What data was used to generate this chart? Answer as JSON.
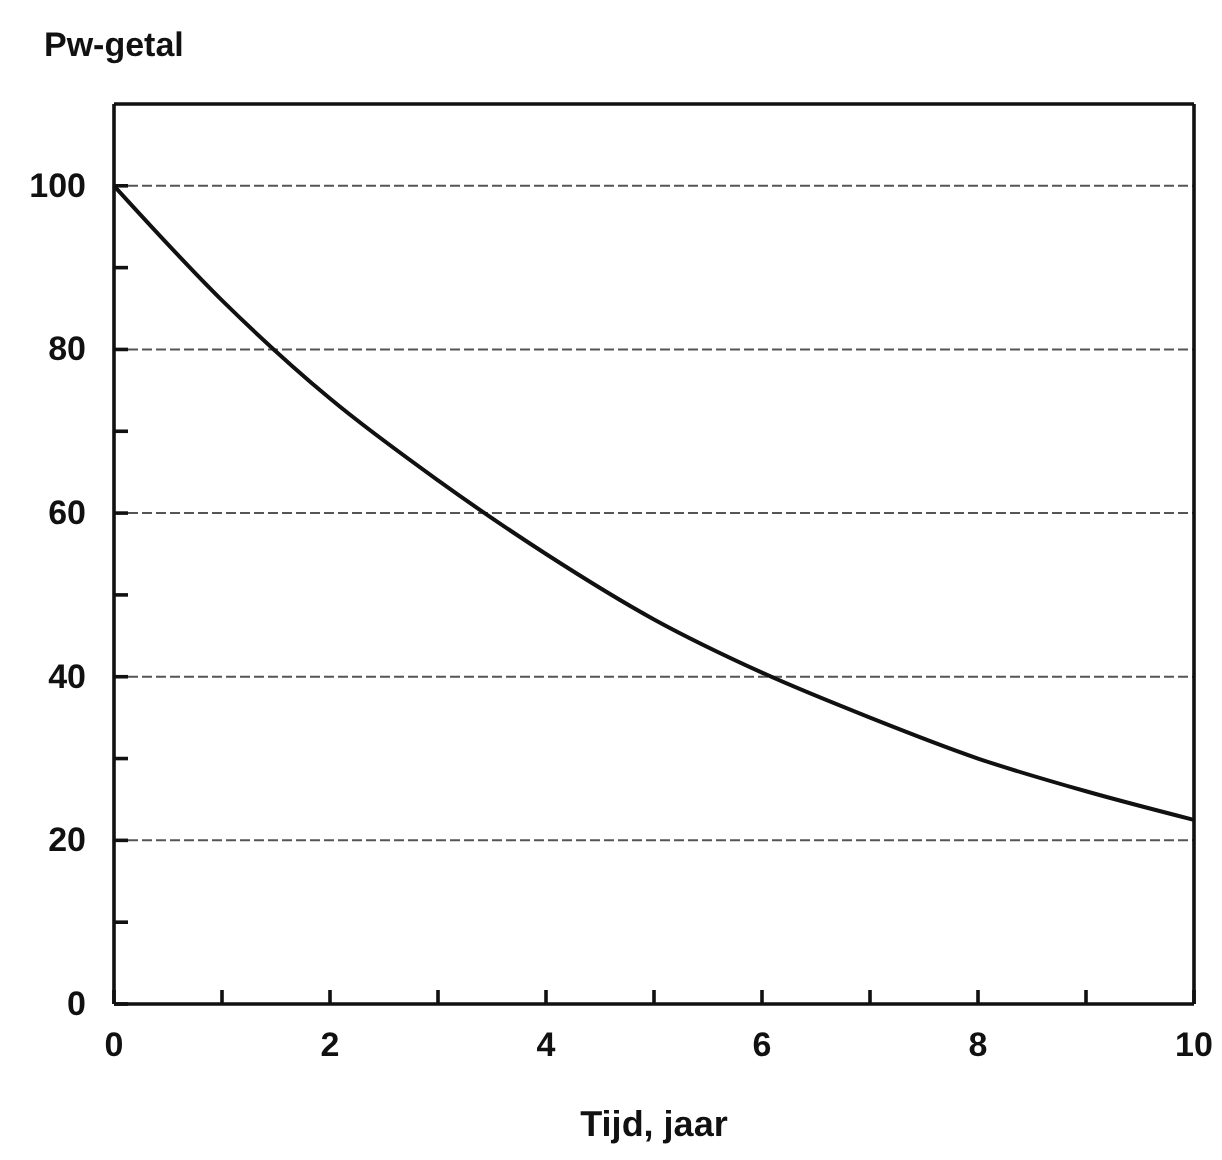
{
  "chart_data": {
    "type": "line",
    "ylabel": "Pw-getal",
    "xlabel": "Tijd, jaar",
    "x": [
      0,
      1,
      2,
      3,
      4,
      5,
      6,
      7,
      8,
      9,
      10
    ],
    "values": [
      100,
      86,
      74,
      64,
      55,
      47,
      40.5,
      35,
      30,
      26,
      22.5
    ],
    "color": "#111111",
    "line_style": "solid",
    "marker": "none",
    "xlim": [
      0,
      10
    ],
    "xticks": [
      0,
      {
        "value": 1,
        "label": null
      },
      2,
      {
        "value": 3,
        "label": null
      },
      4,
      {
        "value": 5,
        "label": null
      },
      6,
      {
        "value": 7,
        "label": null
      },
      8,
      {
        "value": 9,
        "label": null
      },
      10
    ],
    "ylim": [
      0,
      110
    ],
    "yticks": [
      0,
      {
        "value": 10,
        "label": null
      },
      20,
      {
        "value": 30,
        "label": null
      },
      40,
      {
        "value": 50,
        "label": null
      },
      60,
      {
        "value": 70,
        "label": null
      },
      80,
      {
        "value": 90,
        "label": null
      },
      100
    ],
    "grid": "y"
  }
}
